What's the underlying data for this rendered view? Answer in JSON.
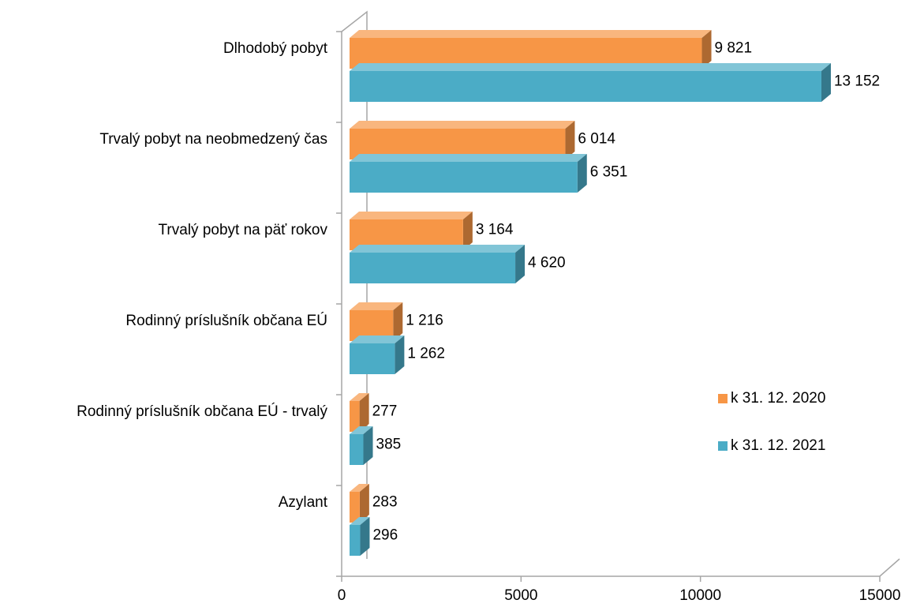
{
  "chart_data": {
    "type": "bar3d_horizontal",
    "categories": [
      "Dlhodobý pobyt",
      "Trvalý pobyt na neobmedzený čas",
      "Trvalý pobyt na päť rokov",
      "Rodinný príslušník občana EÚ",
      "Rodinný príslušník občana EÚ - trvalý",
      "Azylant"
    ],
    "series": [
      {
        "name": "k 31. 12. 2020",
        "color": "#f79646",
        "values": [
          9821,
          6014,
          3164,
          1216,
          277,
          283
        ],
        "value_labels": [
          "9 821",
          "6 014",
          "3 164",
          "1 216",
          "277",
          "283"
        ]
      },
      {
        "name": "k 31. 12. 2021",
        "color": "#4bacc6",
        "values": [
          13152,
          6351,
          4620,
          1262,
          385,
          296
        ],
        "value_labels": [
          "13 152",
          "6 351",
          "4 620",
          "1 262",
          "385",
          "296"
        ]
      }
    ],
    "xlim": [
      0,
      15000
    ],
    "xticks": [
      0,
      5000,
      10000,
      15000
    ],
    "legend": "right"
  }
}
